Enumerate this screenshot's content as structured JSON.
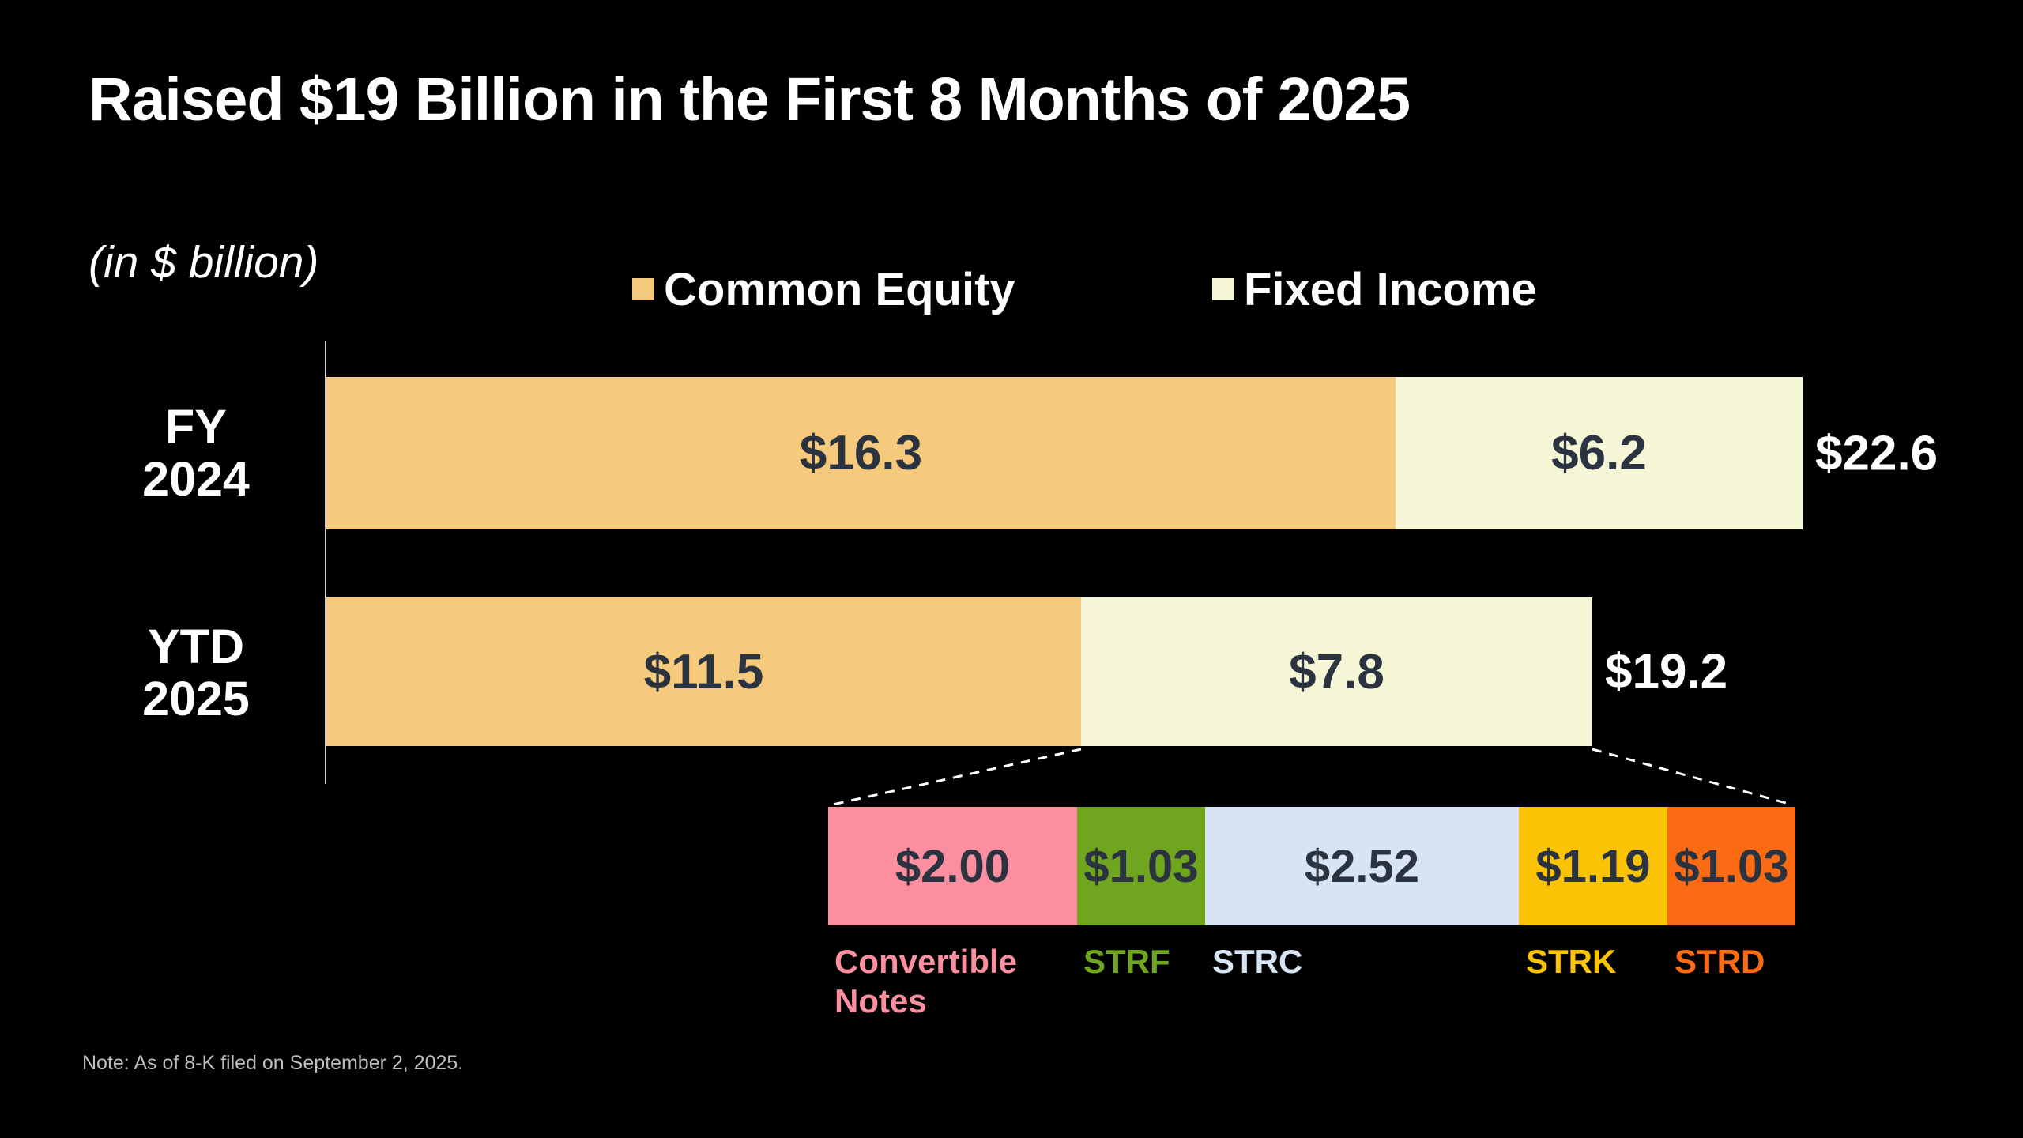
{
  "title": "Raised $19 Billion in the First 8 Months of 2025",
  "unit_note": "(in $ billion)",
  "legend": [
    {
      "label": "Common Equity",
      "color": "#f6ca7d"
    },
    {
      "label": "Fixed Income",
      "color": "#f5f6d6"
    }
  ],
  "note": "Note: As of 8-K filed on September 2, 2025.",
  "colors": {
    "background": "#000000",
    "bar_value_text": "#2c3340",
    "axis_line": "#d0d0d0",
    "note_text": "#bfbfbf"
  },
  "chart_data": {
    "type": "bar",
    "orientation": "horizontal",
    "unit": "$ billion",
    "categories": [
      "FY 2024",
      "YTD 2025"
    ],
    "category_lines": [
      [
        "FY",
        "2024"
      ],
      [
        "YTD",
        "2025"
      ]
    ],
    "series": [
      {
        "name": "Common Equity",
        "color": "#f6ca7d",
        "values": [
          16.3,
          11.5
        ]
      },
      {
        "name": "Fixed Income",
        "color": "#f5f6d6",
        "values": [
          6.2,
          7.8
        ]
      }
    ],
    "value_labels": [
      [
        "$16.3",
        "$6.2"
      ],
      [
        "$11.5",
        "$7.8"
      ]
    ],
    "totals": [
      22.6,
      19.2
    ],
    "total_labels": [
      "$22.6",
      "$19.2"
    ],
    "legend_position": "top",
    "grid": false,
    "breakdown": {
      "of": "YTD 2025 Fixed Income",
      "total": 7.77,
      "segments": [
        {
          "label": "Convertible Notes",
          "value": 2.0,
          "value_label": "$2.00",
          "color": "#fb8f9f"
        },
        {
          "label": "STRF",
          "value": 1.03,
          "value_label": "$1.03",
          "color": "#6fa51f"
        },
        {
          "label": "STRC",
          "value": 2.52,
          "value_label": "$2.52",
          "color": "#d7e4f4"
        },
        {
          "label": "STRK",
          "value": 1.19,
          "value_label": "$1.19",
          "color": "#fbc306"
        },
        {
          "label": "STRD",
          "value": 1.03,
          "value_label": "$1.03",
          "color": "#fb6b13"
        }
      ]
    }
  }
}
